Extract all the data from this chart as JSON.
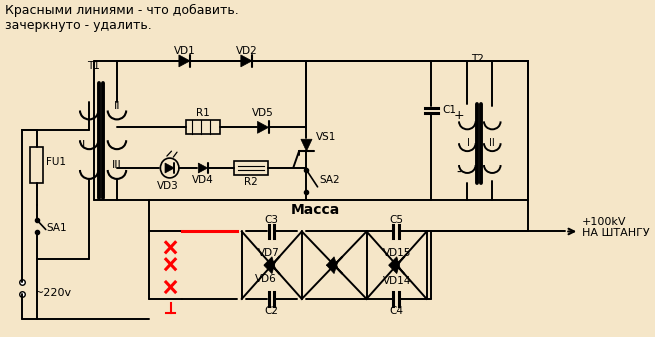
{
  "bg": "#f5e6c8",
  "lc": "#000000",
  "rc": "#ff0000",
  "fs": 7.5,
  "title": "Красными линиями - что добавить.\nзачеркнуто - удалить.",
  "title_fs": 9,
  "massa": "Масса",
  "output": "+100kV\nНА ШТАНГУ",
  "input_v": "~220v"
}
